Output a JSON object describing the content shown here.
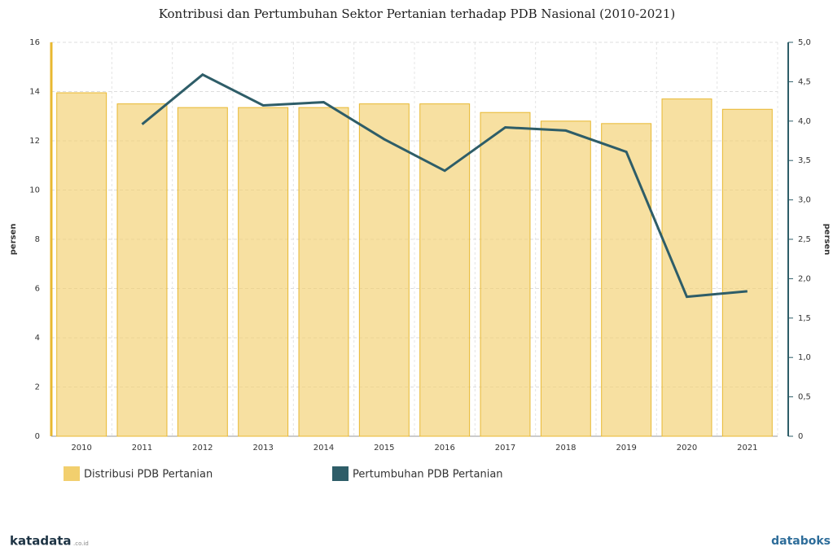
{
  "chart_data": {
    "type": "bar_line",
    "title": "Kontribusi dan Pertumbuhan Sektor Pertanian terhadap PDB Nasional (2010-2021)",
    "categories": [
      "2010",
      "2011",
      "2012",
      "2013",
      "2014",
      "2015",
      "2016",
      "2017",
      "2018",
      "2019",
      "2020",
      "2021"
    ],
    "series": [
      {
        "name": "Distribusi PDB Pertanian",
        "type": "bar",
        "color": "#f2cf6e",
        "values": [
          13.95,
          13.5,
          13.35,
          13.35,
          13.35,
          13.5,
          13.5,
          13.15,
          12.8,
          12.7,
          13.7,
          13.28
        ]
      },
      {
        "name": "Pertumbuhan PDB Pertanian",
        "type": "line",
        "axis": "y2",
        "color": "#2e5d68",
        "values": [
          null,
          3.96,
          4.59,
          4.2,
          4.24,
          3.77,
          3.37,
          3.92,
          3.88,
          3.61,
          1.77,
          1.84
        ]
      }
    ],
    "ylabel": "persen",
    "y2label": "persen",
    "ylim": [
      0,
      16
    ],
    "yticks": [
      0,
      2,
      4,
      6,
      8,
      10,
      12,
      14,
      16
    ],
    "y2lim": [
      0,
      5
    ],
    "y2ticks": [
      0,
      {
        "value": 0.5,
        "label": "0,5"
      },
      {
        "value": 1,
        "label": "1,0"
      },
      {
        "value": 1.5,
        "label": "1,5"
      },
      {
        "value": 2,
        "label": "2,0"
      },
      {
        "value": 2.5,
        "label": "2,5"
      },
      {
        "value": 3,
        "label": "3,0"
      },
      {
        "value": 3.5,
        "label": "3,5"
      },
      {
        "value": 4,
        "label": "4,0"
      },
      {
        "value": 4.5,
        "label": "4,5"
      },
      {
        "value": 5,
        "label": "5,0"
      }
    ],
    "grid": true,
    "source_left": "katadata",
    "source_left_suffix": ".co.id",
    "source_right": "databoks"
  }
}
